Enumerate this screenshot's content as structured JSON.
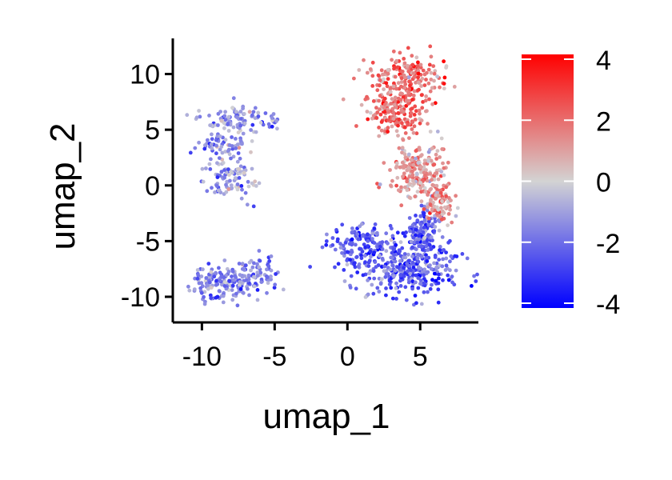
{
  "chart_data": {
    "type": "scatter",
    "title": "",
    "xlabel": "umap_1",
    "ylabel": "umap_2",
    "xlim": [
      -12,
      9
    ],
    "ylim": [
      -12.3,
      13.2
    ],
    "xticks": [
      -10,
      -5,
      0,
      5
    ],
    "xtick_labels": [
      "-10",
      "-5",
      "0",
      "5"
    ],
    "yticks": [
      -10,
      -5,
      0,
      5,
      10
    ],
    "ytick_labels": [
      "-10",
      "-5",
      "0",
      "5",
      "10"
    ],
    "grid": false,
    "legend": {
      "type": "colorbar",
      "placement": "right",
      "min": -4,
      "max": 4,
      "ticks": [
        4,
        2,
        0,
        -2,
        -4
      ],
      "tick_labels": [
        "4",
        "2",
        "0",
        "-2",
        "-4"
      ],
      "colors": {
        "low": "#0000ff",
        "mid": "#d3d3d3",
        "high": "#ff0000"
      }
    },
    "clusters": [
      {
        "region": "upper-left",
        "center": [
          -8.5,
          2.5
        ],
        "count": 260,
        "mean_value": -1.2
      },
      {
        "region": "lower-left",
        "center": [
          -8.0,
          -8.8
        ],
        "count": 220,
        "mean_value": -1.6
      },
      {
        "region": "lower-middle",
        "center": [
          3.5,
          -6.5
        ],
        "count": 600,
        "mean_value": -2.2
      },
      {
        "region": "top-right",
        "center": [
          4.0,
          8.5
        ],
        "count": 360,
        "mean_value": 1.9
      },
      {
        "region": "middle-right",
        "center": [
          5.0,
          1.0
        ],
        "count": 300,
        "mean_value": 1.2
      }
    ]
  }
}
